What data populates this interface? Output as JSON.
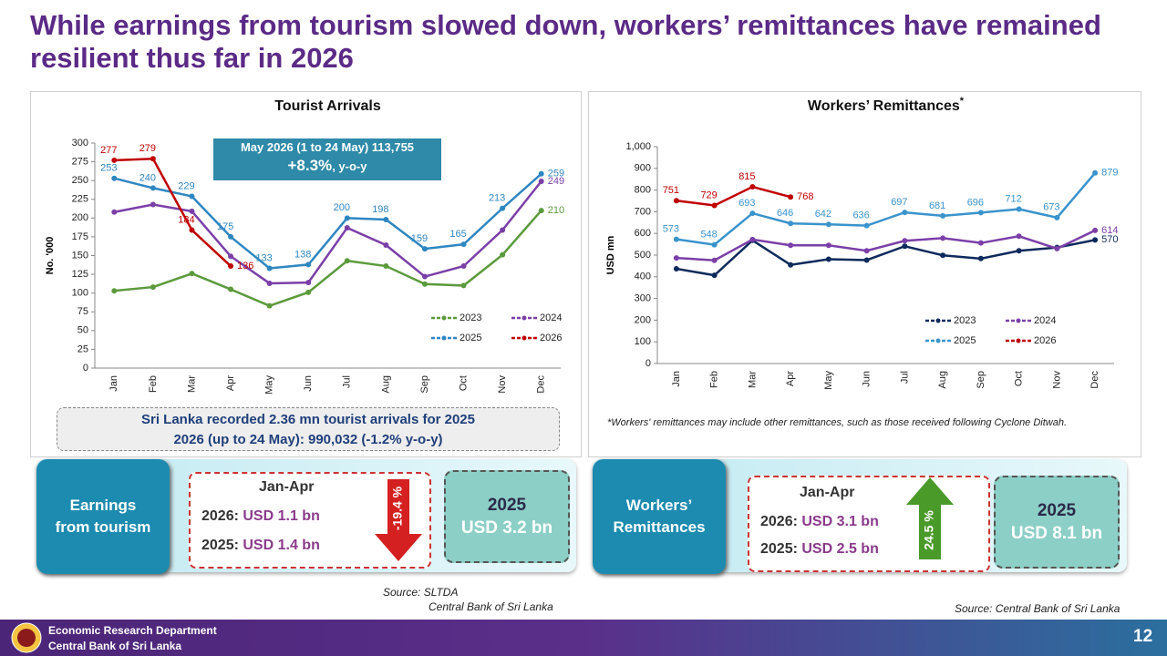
{
  "title": "While earnings from tourism slowed down, workers’ remittances have remained resilient thus far in 2026",
  "chart_data": [
    {
      "type": "line",
      "title": "Tourist Arrivals",
      "y_label": "No. '000",
      "categories": [
        "Jan",
        "Feb",
        "Mar",
        "Apr",
        "May",
        "Jun",
        "Jul",
        "Aug",
        "Sep",
        "Oct",
        "Nov",
        "Dec"
      ],
      "ylim": [
        0,
        300
      ],
      "yticks": [
        0,
        25,
        50,
        75,
        100,
        125,
        150,
        175,
        200,
        225,
        250,
        275,
        300
      ],
      "legend": "lower right",
      "series": [
        {
          "name": "2023",
          "color": "#5b9a3c",
          "data_labels": "last",
          "values": [
            103,
            108,
            126,
            105,
            83,
            101,
            143,
            136,
            112,
            110,
            151,
            210
          ]
        },
        {
          "name": "2024",
          "color": "#7b3fa8",
          "data_labels": "last",
          "values": [
            208,
            218,
            209,
            149,
            113,
            114,
            187,
            164,
            122,
            136,
            184,
            249
          ]
        },
        {
          "name": "2025",
          "color": "#2e86c1",
          "data_labels": "all",
          "values": [
            253,
            240,
            229,
            175,
            133,
            138,
            200,
            198,
            159,
            165,
            213,
            259
          ]
        },
        {
          "name": "2026",
          "color": "#c00000",
          "data_labels": "all",
          "values": [
            277,
            279,
            184,
            136,
            null,
            null,
            null,
            null,
            null,
            null,
            null,
            null
          ]
        }
      ],
      "annotation": {
        "text": "May 2026 (1 to 24 May) 113,755",
        "change": "+8.3%",
        "suffix": ", y-o-y"
      }
    },
    {
      "type": "line",
      "title": "Workers’ Remittances",
      "title_mark": "*",
      "y_label": "USD mn",
      "categories": [
        "Jan",
        "Feb",
        "Mar",
        "Apr",
        "May",
        "Jun",
        "Jul",
        "Aug",
        "Sep",
        "Oct",
        "Nov",
        "Dec"
      ],
      "ylim": [
        0,
        1000
      ],
      "yticks": [
        0,
        100,
        200,
        300,
        400,
        500,
        600,
        700,
        800,
        900,
        {
          "value": 1000,
          "label": "1,000"
        }
      ],
      "legend": "lower right",
      "series": [
        {
          "name": "2023",
          "color": "#0d2a5c",
          "data_labels": "last",
          "values": [
            437,
            407,
            568,
            455,
            481,
            477,
            541,
            499,
            484,
            520,
            535,
            570
          ]
        },
        {
          "name": "2024",
          "color": "#7b3fa8",
          "data_labels": "last",
          "values": [
            487,
            476,
            572,
            545,
            545,
            520,
            566,
            578,
            556,
            587,
            530,
            614
          ]
        },
        {
          "name": "2025",
          "color": "#3a93cc",
          "data_labels": "all",
          "values": [
            573,
            548,
            693,
            646,
            642,
            636,
            697,
            681,
            696,
            712,
            673,
            879
          ]
        },
        {
          "name": "2026",
          "color": "#c00000",
          "data_labels": "all",
          "values": [
            751,
            729,
            815,
            768,
            null,
            null,
            null,
            null,
            null,
            null,
            null,
            null
          ]
        }
      ]
    }
  ],
  "tourism_summary": [
    "Sri Lanka recorded 2.36 mn tourist arrivals for 2025",
    "2026 (up to 24 May): 990,032 (-1.2% y-o-y)"
  ],
  "remittance_note": "*Workers' remittances may include other remittances, such as those received following Cyclone Ditwah.",
  "panels": [
    {
      "label": "Earnings from tourism",
      "period": "Jan-Apr",
      "rows": [
        [
          "2026:",
          "USD 1.1 bn"
        ],
        [
          "2025:",
          "USD 1.4 bn"
        ]
      ],
      "change": "-19.4 %",
      "annual_year": "2025",
      "annual_value": "USD 3.2 bn"
    },
    {
      "label": "Workers’ Remittances",
      "period": "Jan-Apr",
      "rows": [
        [
          "2026:",
          "USD 3.1 bn"
        ],
        [
          "2025:",
          "USD 2.5 bn"
        ]
      ],
      "change": "24.5 %",
      "annual_year": "2025",
      "annual_value": "USD 8.1 bn"
    }
  ],
  "sources": [
    "Source: SLTDA",
    "Central Bank of Sri Lanka",
    "Source: Central Bank of Sri Lanka"
  ],
  "footer": {
    "line1": "Economic Research Department",
    "line2": "Central Bank of Sri Lanka",
    "page": "12"
  }
}
